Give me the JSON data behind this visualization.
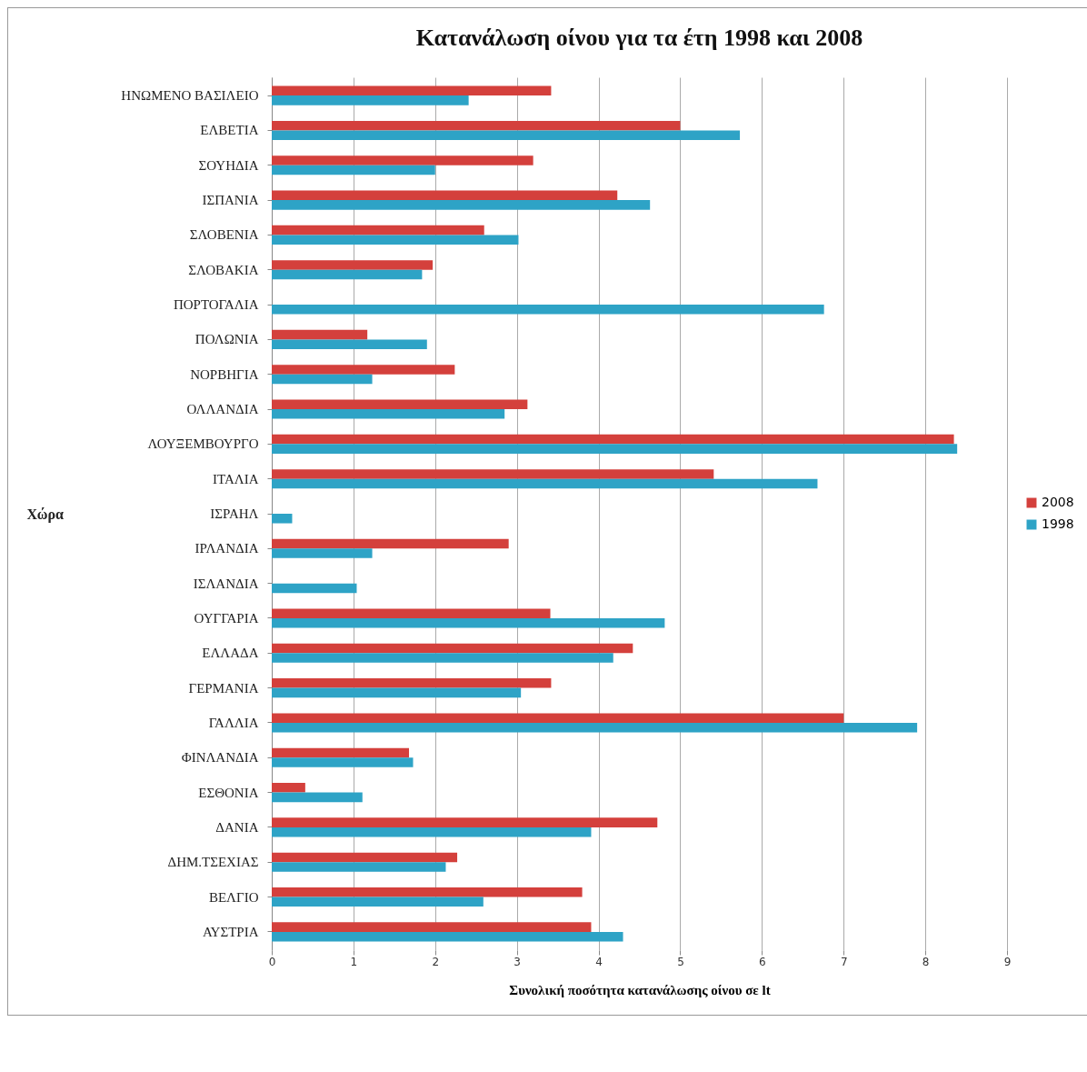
{
  "chart_data": {
    "type": "bar",
    "orientation": "horizontal",
    "title": "Κατανάλωση οίνου για τα έτη 1998 και 2008",
    "xlabel": "Συνολική ποσότητα κατανάλωσης οίνου σε lt",
    "ylabel": "Χώρα",
    "categories": [
      "ΗΝΩΜΕΝΟ ΒΑΣΙΛΕΙΟ",
      "ΕΛΒΕΤΙΑ",
      "ΣΟΥΗΔΙΑ",
      "ΙΣΠΑΝΙΑ",
      "ΣΛΟΒΕΝΙΑ",
      "ΣΛΟΒΑΚΙΑ",
      "ΠΟΡΤΟΓΑΛΙΑ",
      "ΠΟΛΩΝΙΑ",
      "ΝΟΡΒΗΓΙΑ",
      "ΟΛΛΑΝΔΙΑ",
      "ΛΟΥΞΕΜΒΟΥΡΓΟ",
      "ΙΤΑΛΙΑ",
      "ΙΣΡΑΗΛ",
      "ΙΡΛΑΝΔΙΑ",
      "ΙΣΛΑΝΔΙΑ",
      "ΟΥΓΓΑΡΙΑ",
      "ΕΛΛΑΔΑ",
      "ΓΕΡΜΑΝΙΑ",
      "ΓΑΛΛΙΑ",
      "ΦΙΝΛΑΝΔΙΑ",
      "ΕΣΘΟΝΙΑ",
      "ΔΑΝΙΑ",
      "ΔΗΜ.ΤΣΕΧΙΑΣ",
      "ΒΕΛΓΙΟ",
      "ΑΥΣΤΡΙΑ"
    ],
    "series": [
      {
        "name": "2008",
        "color": "#d4403c",
        "values": [
          3.42,
          5.0,
          3.2,
          4.23,
          2.6,
          1.97,
          null,
          1.17,
          2.24,
          3.13,
          8.35,
          5.41,
          null,
          2.9,
          null,
          3.41,
          4.42,
          3.42,
          7.0,
          1.68,
          0.41,
          4.72,
          2.27,
          3.8,
          3.91
        ]
      },
      {
        "name": "1998",
        "color": "#2ea3c6",
        "values": [
          2.41,
          5.73,
          2.0,
          4.63,
          3.02,
          1.84,
          6.76,
          1.9,
          1.23,
          2.85,
          8.39,
          6.68,
          0.25,
          1.23,
          1.04,
          4.81,
          4.18,
          3.05,
          7.9,
          1.73,
          1.11,
          3.91,
          2.13,
          2.59,
          4.3
        ]
      }
    ],
    "xlim": [
      0,
      9
    ],
    "xticks": [
      0,
      1,
      2,
      3,
      4,
      5,
      6,
      7,
      8,
      9
    ],
    "grid": "x",
    "legend": "right"
  }
}
